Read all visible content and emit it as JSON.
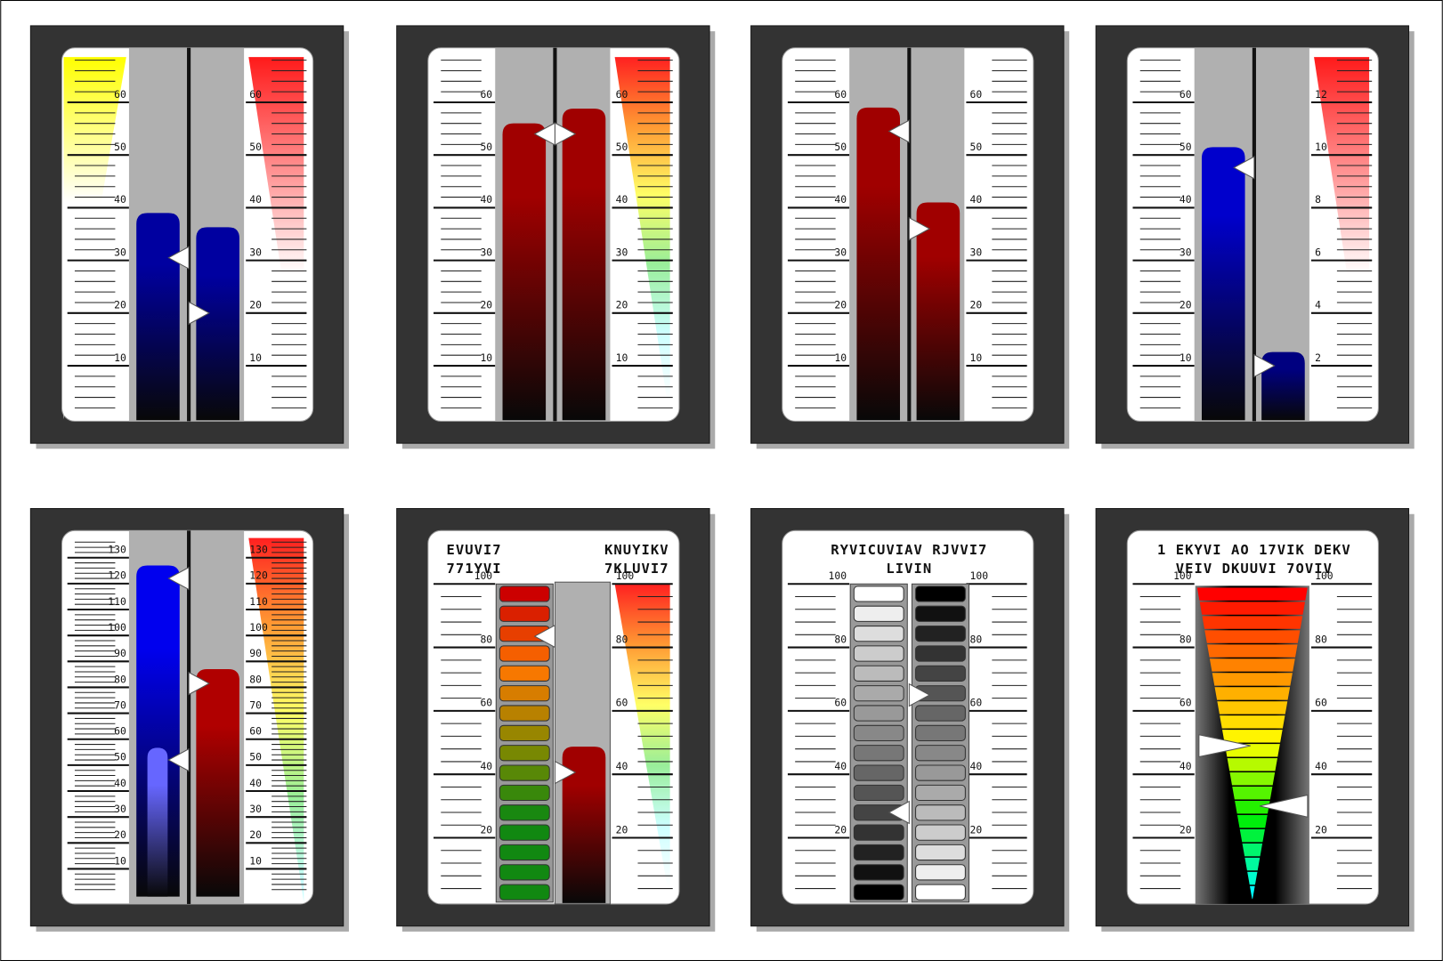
{
  "gauges": [
    {
      "type": "bars",
      "ylim": [
        0,
        68.6
      ],
      "left_ticks": [
        10,
        20,
        30,
        40,
        50,
        60
      ],
      "right_ticks": [
        10,
        20,
        30,
        40,
        50,
        60
      ],
      "left_wedge": [
        "#ffff00",
        "#ffffff"
      ],
      "right_wedge": [
        "#ff1a1a",
        "#ffffff"
      ],
      "bars": [
        {
          "value": 39,
          "color": "#0000a0"
        },
        {
          "value": 36.3,
          "color": "#0000a0"
        }
      ],
      "pointers": [
        30.5,
        20
      ]
    },
    {
      "type": "bars",
      "ylim": [
        0,
        68.6
      ],
      "left_ticks": [
        10,
        20,
        30,
        40,
        50,
        60
      ],
      "right_ticks": [
        10,
        20,
        30,
        40,
        50,
        60
      ],
      "right_wedge": [
        "#ff2020",
        "#ff9933",
        "#ffff66",
        "#99ee99",
        "#ccffff",
        "#ffffff"
      ],
      "bars": [
        {
          "value": 56,
          "color": "#a00000"
        },
        {
          "value": 58.8,
          "color": "#a00000"
        }
      ],
      "pointers": [
        54,
        54
      ]
    },
    {
      "type": "bars",
      "ylim": [
        0,
        68.6
      ],
      "left_ticks": [
        10,
        20,
        30,
        40,
        50,
        60
      ],
      "right_ticks": [
        10,
        20,
        30,
        40,
        50,
        60
      ],
      "bars": [
        {
          "value": 59,
          "color": "#a00000"
        },
        {
          "value": 41,
          "color": "#a00000"
        }
      ],
      "pointers": [
        54.5,
        36
      ]
    },
    {
      "type": "bars",
      "ylim": [
        0,
        68.6
      ],
      "y2lim": [
        0,
        13.72
      ],
      "left_ticks": [
        10,
        20,
        30,
        40,
        50,
        60
      ],
      "right_ticks": [
        2,
        4,
        6,
        8,
        10,
        12
      ],
      "right_wedge": [
        "#ff1a1a",
        "#ffffff"
      ],
      "bars": [
        {
          "value": 51.5,
          "color": "#0000cc"
        },
        {
          "value": 12.6,
          "color": "#000080"
        }
      ],
      "pointers": [
        47.6,
        10
      ]
    },
    {
      "type": "bars",
      "ylim": [
        0,
        137.6
      ],
      "left_ticks": [
        10,
        20,
        30,
        40,
        50,
        60,
        70,
        80,
        90,
        100,
        110,
        120,
        130
      ],
      "right_ticks": [
        10,
        20,
        30,
        40,
        50,
        60,
        70,
        80,
        90,
        100,
        110,
        120,
        130
      ],
      "right_wedge": [
        "#ff2020",
        "#ff9933",
        "#ffff66",
        "#99ee99",
        "#ccffff"
      ],
      "bars": [
        {
          "value": 127,
          "color": "#0000ee"
        },
        {
          "value": 87,
          "color": "#b00000"
        },
        {
          "value": 56.7,
          "color": "#6666ff"
        }
      ],
      "pointers": [
        122,
        81.5,
        52
      ]
    },
    {
      "type": "led",
      "ylim": [
        0,
        100
      ],
      "left_ticks": [
        20,
        40,
        60,
        80,
        100
      ],
      "right_ticks": [
        20,
        40,
        60,
        80,
        100
      ],
      "title_left": [
        "EVUVI7",
        "771YVI"
      ],
      "title_right": [
        "KNUYIKV",
        "7KLUVI7"
      ],
      "right_wedge": [
        "#ff2020",
        "#ff9933",
        "#ffff66",
        "#99ee99",
        "#ccffff",
        "#ffffff"
      ],
      "leds": [
        {
          "cells": 16,
          "colors": [
            "#cc0000",
            "#ff7700",
            "#888800",
            "#118811",
            "#118811"
          ]
        }
      ],
      "bars": [
        {
          "value": 48.7,
          "color": "#a00000"
        }
      ],
      "pointers": [
        83.5,
        40.6
      ]
    },
    {
      "type": "led",
      "ylim": [
        0,
        100
      ],
      "left_ticks": [
        20,
        40,
        60,
        80,
        100
      ],
      "right_ticks": [
        20,
        40,
        60,
        80,
        100
      ],
      "title": [
        "RYVICUVIAV RJVVI7",
        "LIVIN"
      ],
      "leds": [
        {
          "cells": 16,
          "colors": [
            "#ffffff",
            "#000000"
          ]
        },
        {
          "cells": 16,
          "colors": [
            "#000000",
            "#ffffff"
          ]
        }
      ],
      "pointers": [
        65,
        28
      ]
    },
    {
      "type": "cone",
      "ylim": [
        0,
        100
      ],
      "left_ticks": [
        20,
        40,
        60,
        80,
        100
      ],
      "right_ticks": [
        20,
        40,
        60,
        80,
        100
      ],
      "title": [
        "1 EKYVI AO 17VIK DEKV",
        "VEIV DKUUVI 7OVIV"
      ],
      "cone_colors": [
        "#ff0000",
        "#ff8800",
        "#ffff00",
        "#00ee00",
        "#00ffff"
      ],
      "pointers": [
        49,
        30
      ]
    }
  ]
}
